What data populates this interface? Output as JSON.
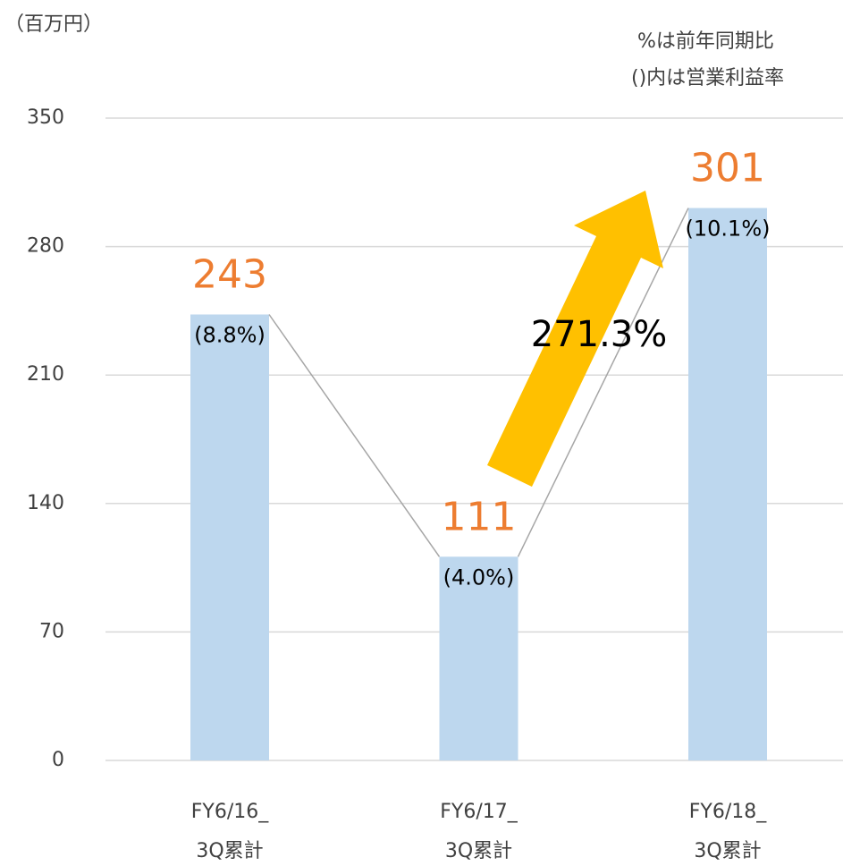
{
  "chart_data": {
    "type": "bar",
    "unit_label": "（百万円）",
    "notes": [
      "%は前年同期比",
      "()内は営業利益率"
    ],
    "annotation": "271.3%",
    "categories": [
      [
        "FY6/16_",
        "3Q累計"
      ],
      [
        "FY6/17_",
        "3Q累計"
      ],
      [
        "FY6/18_",
        "3Q累計"
      ]
    ],
    "values": [
      243,
      111,
      301
    ],
    "margin_labels": [
      "(8.8%)",
      "(4.0%)",
      "(10.1%)"
    ],
    "color": "#bdd7ee",
    "label_color": "#ed7d31",
    "connector_color": "#a6a6a6",
    "ylim": [
      0,
      350
    ],
    "yticks": [
      0,
      70,
      140,
      210,
      280,
      350
    ],
    "grid": true
  }
}
